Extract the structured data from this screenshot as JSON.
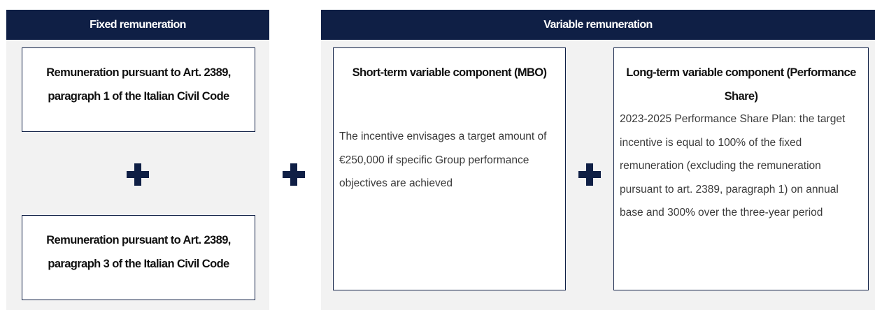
{
  "fixed": {
    "header": "Fixed remuneration",
    "boxes": [
      {
        "title": "Remuneration pursuant to Art. 2389, paragraph 1 of the Italian Civil Code"
      },
      {
        "title": "Remuneration pursuant to Art. 2389, paragraph 3 of the Italian Civil Code"
      }
    ]
  },
  "variable": {
    "header": "Variable remuneration",
    "boxes": [
      {
        "title": "Short-term variable component (MBO)",
        "body": "The incentive envisages a target amount of €250,000 if specific Group performance objectives are achieved"
      },
      {
        "title": "Long-term variable component (Performance Share)",
        "body": "2023-2025 Performance Share Plan: the target incentive is equal to 100% of the fixed remuneration (excluding the remuneration pursuant to art. 2389, paragraph 1) on annual base and 300% over the three-year period"
      }
    ]
  }
}
